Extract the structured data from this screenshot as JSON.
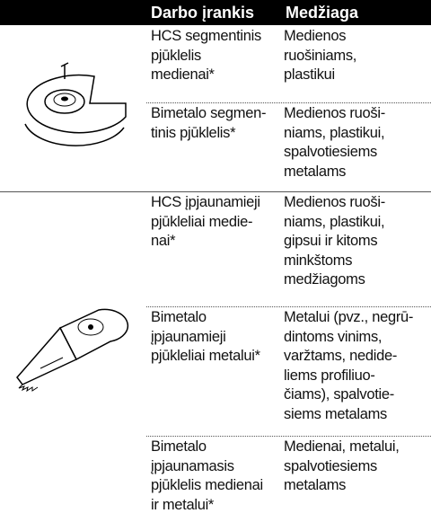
{
  "table": {
    "header": [
      "Darbo įrankis",
      "Medžiaga"
    ],
    "groups": [
      {
        "rows": [
          {
            "tool": [
              "HCS segmentinis",
              "pjūklelis",
              "medienai*"
            ],
            "material": [
              "Medienos",
              "ruošiniams,",
              "plastikui"
            ]
          },
          {
            "tool": [
              "Bimetalo segmen-",
              "tinis pjūklelis*"
            ],
            "material": [
              "Medienos ruoši-",
              "niams, plastikui,",
              "spalvotiesiems",
              "metalams"
            ]
          }
        ]
      },
      {
        "rows": [
          {
            "tool": [
              "HCS įpjaunamieji",
              "pjūkleliai medie-",
              "nai*"
            ],
            "material": [
              "Medienos ruoši-",
              "niams, plastikui,",
              "gipsui ir kitoms",
              "minkštoms",
              "medžiagoms"
            ]
          },
          {
            "tool": [
              "Bimetalo",
              "įpjaunamieji",
              "pjūkleliai metalui*"
            ],
            "material": [
              "Metalui (pvz., negrū-",
              "dintoms vinims,",
              "varžtams, nedide-",
              "liems profiliuo-",
              "čiams), spalvotie-",
              "siems metalams"
            ]
          },
          {
            "tool": [
              "Bimetalo",
              "įpjaunamasis",
              "pjūklelis medienai",
              "ir metalui*"
            ],
            "material": [
              "Medienai, metalui,",
              "spalvotiesiems",
              "metalams"
            ]
          }
        ]
      }
    ]
  }
}
